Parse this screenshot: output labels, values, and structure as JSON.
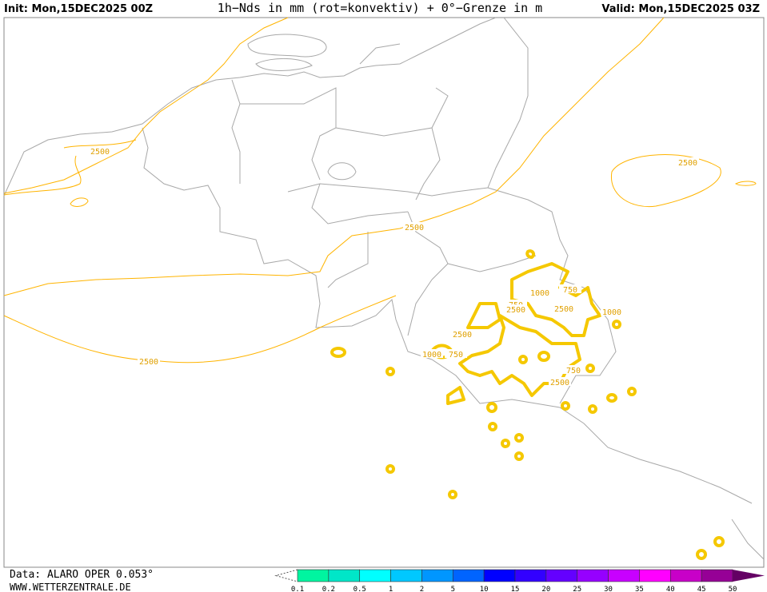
{
  "header": {
    "init": "Init: Mon,15DEC2025 00Z",
    "title": "1h−Nds in mm (rot=konvektiv) + 0°−Grenze in m",
    "valid": "Valid: Mon,15DEC2025 03Z"
  },
  "map": {
    "contour_labels": [
      "2500",
      "2500",
      "2500",
      "2500",
      "750",
      "1000",
      "750",
      "2500",
      "2500",
      "1000",
      "2500",
      "1000",
      "750",
      "750",
      "2500"
    ]
  },
  "colorbar": {
    "ticks": [
      "0.1",
      "0.2",
      "0.5",
      "1",
      "2",
      "5",
      "10",
      "15",
      "20",
      "25",
      "30",
      "35",
      "40",
      "45",
      "50"
    ],
    "colors": [
      "#00f5a0",
      "#00e6c8",
      "#00ffff",
      "#00c8ff",
      "#0096ff",
      "#0064ff",
      "#0000ff",
      "#3200ff",
      "#6400ff",
      "#9600ff",
      "#c800ff",
      "#ff00ff",
      "#c800c8",
      "#960096",
      "#640064"
    ]
  },
  "footer": {
    "data": "Data: ALARO OPER 0.053°",
    "site": "WWW.WETTERZENTRALE.DE"
  }
}
